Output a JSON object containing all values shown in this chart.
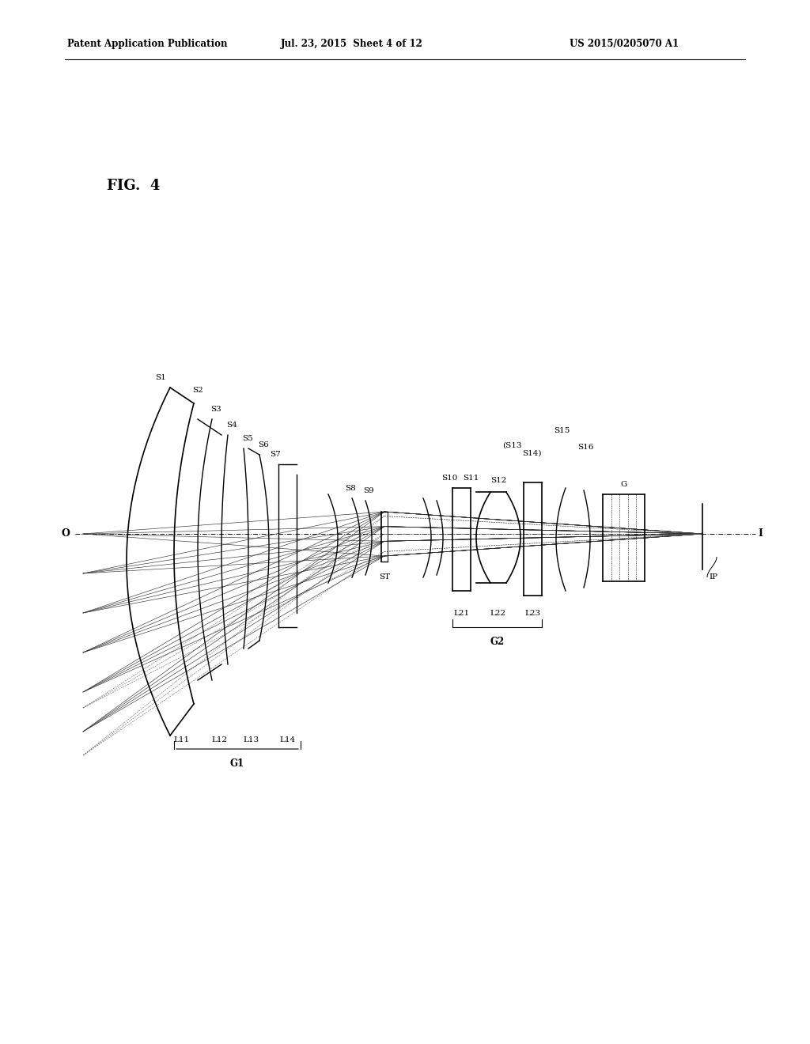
{
  "header_left": "Patent Application Publication",
  "header_mid": "Jul. 23, 2015  Sheet 4 of 12",
  "header_right": "US 2015/0205070 A1",
  "fig_label": "FIG.  4",
  "bg_color": "#ffffff",
  "line_color": "#000000",
  "axis_label_O": "O",
  "axis_label_I": "I",
  "group1_label": "G1",
  "group2_label": "G2",
  "lens_labels_g1": [
    "L11",
    "L12",
    "L13",
    "L14"
  ],
  "lens_labels_g2": [
    "L21",
    "L22",
    "L23"
  ],
  "surface_labels": [
    "S1",
    "S2",
    "S3",
    "S4",
    "S5",
    "S6",
    "S7",
    "S8",
    "S9",
    "S10",
    "S11",
    "S12",
    "S13",
    "S14",
    "S15",
    "S16"
  ],
  "other_labels": [
    "ST",
    "G",
    "IP"
  ]
}
